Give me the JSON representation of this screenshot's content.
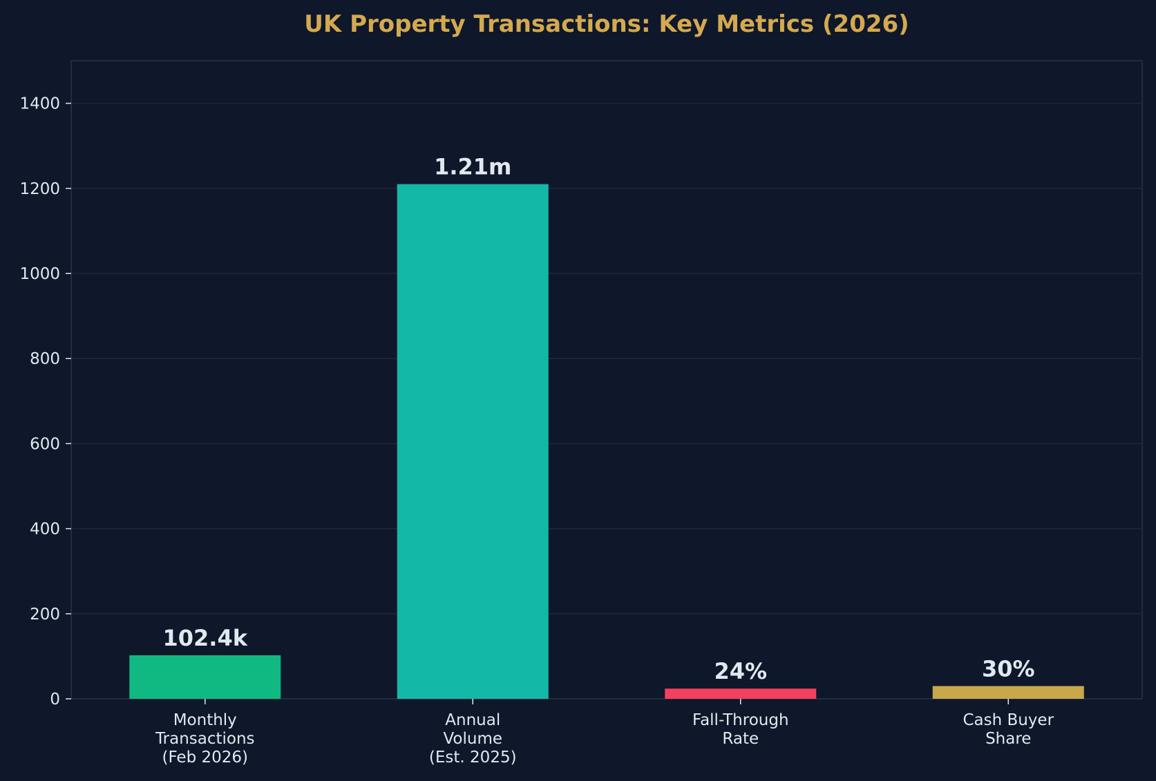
{
  "chart_data": {
    "type": "bar",
    "title": "UK Property Transactions: Key Metrics (2026)",
    "xlabel": "",
    "ylabel": "",
    "categories": [
      [
        "Monthly",
        "Transactions",
        "(Feb 2026)"
      ],
      [
        "Annual",
        "Volume",
        "(Est. 2025)"
      ],
      [
        "Fall-Through",
        "Rate"
      ],
      [
        "Cash Buyer",
        "Share"
      ]
    ],
    "values": [
      102.4,
      1210,
      24,
      30
    ],
    "value_labels": [
      "102.4k",
      "1.21m",
      "24%",
      "30%"
    ],
    "bar_colors": [
      "#10b981",
      "#14b8a6",
      "#f43f5e",
      "#c9a84c"
    ],
    "ylim": [
      0,
      1500
    ],
    "yticks": [
      0,
      200,
      400,
      600,
      800,
      1000,
      1200,
      1400
    ],
    "grid": true,
    "legend": "none"
  },
  "colors": {
    "background": "#0f172a",
    "title": "#d4a94f",
    "text": "#e2e8f0",
    "grid": "#1e293b",
    "axis": "#2a3547"
  }
}
